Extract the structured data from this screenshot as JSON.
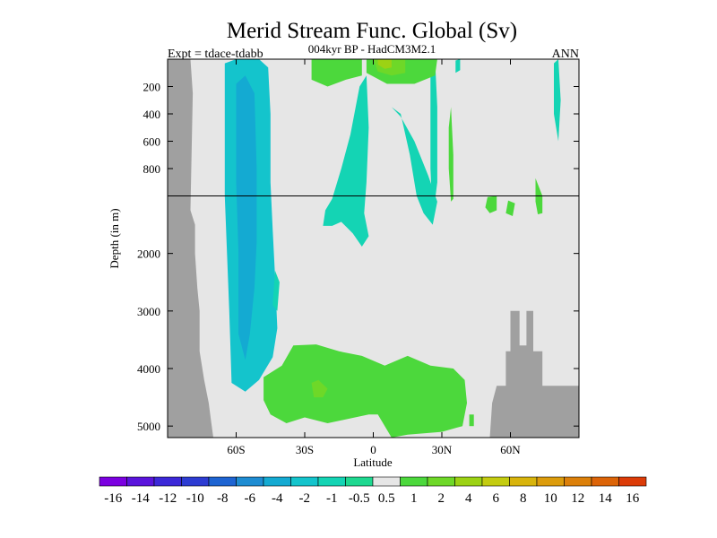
{
  "chart_data": {
    "type": "heatmap",
    "title": "Merid Stream Func. Global (Sv)",
    "subtitle_left": "Expt = tdace-tdabb",
    "subtitle_center": "004kyr BP - HadCM3M2.1",
    "subtitle_right": "ANN",
    "xlabel": "Latitude",
    "ylabel": "Depth (in m)",
    "xlim": [
      -90,
      90
    ],
    "x_ticks": [
      {
        "value": -60,
        "label": "60S"
      },
      {
        "value": -30,
        "label": "30S"
      },
      {
        "value": 0,
        "label": "0"
      },
      {
        "value": 30,
        "label": "30N"
      },
      {
        "value": 60,
        "label": "60N"
      }
    ],
    "y_ticks_upper": [
      {
        "value": 200,
        "label": "200"
      },
      {
        "value": 400,
        "label": "400"
      },
      {
        "value": 600,
        "label": "600"
      },
      {
        "value": 800,
        "label": "800"
      }
    ],
    "y_ticks_lower": [
      {
        "value": 2000,
        "label": "2000"
      },
      {
        "value": 3000,
        "label": "3000"
      },
      {
        "value": 4000,
        "label": "4000"
      },
      {
        "value": 5000,
        "label": "5000"
      }
    ],
    "y_upper_range": [
      0,
      1000
    ],
    "y_lower_range": [
      1000,
      5200
    ],
    "grid": false,
    "legend": "colorbar-bottom",
    "colorbar": {
      "colors": [
        "#7b00e0",
        "#5a14dc",
        "#3c28d8",
        "#2d3cd2",
        "#1e64d2",
        "#1e8cd2",
        "#14aad2",
        "#14c4cc",
        "#14d4b4",
        "#1ed890",
        "#e6e6e6",
        "#4cd83c",
        "#6ed828",
        "#9cd214",
        "#c4cc10",
        "#d8b40c",
        "#dc9c0c",
        "#dc800a",
        "#dc6408",
        "#dc3c08"
      ],
      "labels": [
        "-16",
        "-14",
        "-12",
        "-10",
        "-8",
        "-6",
        "-4",
        "-2",
        "-1",
        "-0.5",
        "0.5",
        "1",
        "2",
        "4",
        "6",
        "8",
        "10",
        "12",
        "14",
        "16"
      ]
    },
    "regions": [
      {
        "level": -4,
        "color": "#14c4cc",
        "pts": [
          [
            -65,
            30
          ],
          [
            -60,
            0
          ],
          [
            -50,
            0
          ],
          [
            -46,
            60
          ],
          [
            -45,
            400
          ],
          [
            -45,
            900
          ],
          [
            -44,
            1600
          ],
          [
            -43,
            2400
          ],
          [
            -42,
            3300
          ],
          [
            -44,
            3800
          ],
          [
            -50,
            4200
          ],
          [
            -56,
            4400
          ],
          [
            -62,
            4250
          ],
          [
            -63,
            3000
          ],
          [
            -64,
            2000
          ],
          [
            -65,
            1000
          ]
        ]
      },
      {
        "level": -6,
        "color": "#14aad2",
        "pts": [
          [
            -60,
            180
          ],
          [
            -56,
            120
          ],
          [
            -52,
            250
          ],
          [
            -51,
            800
          ],
          [
            -51,
            1800
          ],
          [
            -52,
            2600
          ],
          [
            -54,
            3400
          ],
          [
            -56,
            3850
          ],
          [
            -59,
            3400
          ],
          [
            -59,
            2000
          ],
          [
            -60,
            900
          ]
        ]
      },
      {
        "level": -2,
        "color": "#14d4b4",
        "pts": [
          [
            -6,
            200
          ],
          [
            -3,
            120
          ],
          [
            -2,
            500
          ],
          [
            -3,
            900
          ],
          [
            -4,
            1300
          ],
          [
            -2,
            1700
          ],
          [
            -5,
            1880
          ],
          [
            -9,
            1650
          ],
          [
            -14,
            1450
          ],
          [
            -18,
            1520
          ],
          [
            -22,
            1520
          ],
          [
            -21,
            1250
          ],
          [
            -18,
            1050
          ],
          [
            -14,
            800
          ],
          [
            -10,
            550
          ]
        ]
      },
      {
        "level": -2,
        "color": "#14d4b4",
        "pts": [
          [
            8,
            350
          ],
          [
            12,
            400
          ],
          [
            16,
            700
          ],
          [
            19,
            1000
          ],
          [
            22,
            1300
          ],
          [
            26,
            1500
          ],
          [
            28,
            1100
          ],
          [
            24,
            850
          ],
          [
            18,
            600
          ],
          [
            12,
            420
          ]
        ]
      },
      {
        "level": -2,
        "color": "#14d4b4",
        "pts": [
          [
            25,
            100
          ],
          [
            27,
            0
          ],
          [
            28,
            350
          ],
          [
            28,
            900
          ],
          [
            26,
            1400
          ],
          [
            25,
            800
          ]
        ]
      },
      {
        "level": -2,
        "color": "#14d4b4",
        "pts": [
          [
            36,
            10
          ],
          [
            38,
            0
          ],
          [
            38,
            80
          ],
          [
            36,
            100
          ]
        ]
      },
      {
        "level": -2,
        "color": "#14d4b4",
        "pts": [
          [
            79,
            30
          ],
          [
            81,
            0
          ],
          [
            82,
            300
          ],
          [
            81,
            600
          ],
          [
            79,
            400
          ]
        ]
      },
      {
        "level": -2,
        "color": "#14d4b4",
        "pts": [
          [
            -43,
            2300
          ],
          [
            -41,
            2500
          ],
          [
            -42,
            3000
          ],
          [
            -44,
            2900
          ]
        ]
      },
      {
        "level": 1,
        "color": "#4cd83c",
        "pts": [
          [
            -27,
            0
          ],
          [
            -5,
            0
          ],
          [
            -5,
            120
          ],
          [
            -12,
            150
          ],
          [
            -20,
            200
          ],
          [
            -27,
            150
          ]
        ]
      },
      {
        "level": 1,
        "color": "#4cd83c",
        "pts": [
          [
            -3,
            0
          ],
          [
            28,
            0
          ],
          [
            27,
            120
          ],
          [
            18,
            180
          ],
          [
            6,
            180
          ],
          [
            -3,
            100
          ]
        ]
      },
      {
        "level": 2,
        "color": "#6ed828",
        "pts": [
          [
            0,
            0
          ],
          [
            14,
            0
          ],
          [
            14,
            100
          ],
          [
            8,
            120
          ],
          [
            2,
            90
          ]
        ]
      },
      {
        "level": 4,
        "color": "#9cd214",
        "pts": [
          [
            2,
            0
          ],
          [
            8,
            0
          ],
          [
            8,
            60
          ],
          [
            5,
            70
          ],
          [
            2,
            40
          ]
        ]
      },
      {
        "level": 1,
        "color": "#4cd83c",
        "pts": [
          [
            33,
            500
          ],
          [
            34,
            350
          ],
          [
            35,
            700
          ],
          [
            35,
            1050
          ],
          [
            34,
            1100
          ],
          [
            33,
            800
          ]
        ]
      },
      {
        "level": 1,
        "color": "#4cd83c",
        "pts": [
          [
            50,
            1020
          ],
          [
            54,
            1000
          ],
          [
            54,
            1250
          ],
          [
            51,
            1300
          ],
          [
            49,
            1200
          ]
        ]
      },
      {
        "level": 1,
        "color": "#4cd83c",
        "pts": [
          [
            59,
            1080
          ],
          [
            62,
            1130
          ],
          [
            61,
            1350
          ],
          [
            58,
            1300
          ]
        ]
      },
      {
        "level": 1,
        "color": "#4cd83c",
        "pts": [
          [
            71,
            870
          ],
          [
            74,
            1000
          ],
          [
            74,
            1300
          ],
          [
            72,
            1320
          ],
          [
            71,
            1100
          ]
        ]
      },
      {
        "level": 1,
        "color": "#4cd83c",
        "pts": [
          [
            -48,
            4550
          ],
          [
            -48,
            4150
          ],
          [
            -40,
            3950
          ],
          [
            -35,
            3600
          ],
          [
            -25,
            3580
          ],
          [
            -15,
            3700
          ],
          [
            -5,
            3780
          ],
          [
            5,
            3950
          ],
          [
            15,
            3780
          ],
          [
            25,
            3950
          ],
          [
            35,
            4000
          ],
          [
            40,
            4200
          ],
          [
            41,
            4600
          ],
          [
            39,
            5000
          ],
          [
            30,
            5100
          ],
          [
            15,
            5150
          ],
          [
            8,
            5200
          ],
          [
            2,
            4800
          ],
          [
            -2,
            4800
          ],
          [
            -8,
            4850
          ],
          [
            -20,
            4950
          ],
          [
            -30,
            4850
          ],
          [
            -38,
            4950
          ],
          [
            -45,
            4800
          ]
        ]
      },
      {
        "level": 2,
        "color": "#6ed828",
        "pts": [
          [
            -27,
            4250
          ],
          [
            -24,
            4200
          ],
          [
            -20,
            4350
          ],
          [
            -22,
            4500
          ],
          [
            -26,
            4500
          ]
        ]
      },
      {
        "level": 1,
        "color": "#4cd83c",
        "pts": [
          [
            42,
            4800
          ],
          [
            44,
            4800
          ],
          [
            44,
            5000
          ],
          [
            42,
            5000
          ]
        ]
      }
    ],
    "land_mask": [
      {
        "pts": [
          [
            -90,
            0
          ],
          [
            -80,
            0
          ],
          [
            -79,
            250
          ],
          [
            -80,
            1250
          ],
          [
            -78,
            1500
          ],
          [
            -78,
            2000
          ],
          [
            -77,
            2600
          ],
          [
            -76,
            3000
          ],
          [
            -76,
            3700
          ],
          [
            -74,
            4200
          ],
          [
            -72,
            4600
          ],
          [
            -71,
            4900
          ],
          [
            -70,
            5200
          ],
          [
            -90,
            5200
          ]
        ]
      },
      {
        "pts": [
          [
            51,
            5200
          ],
          [
            52,
            4600
          ],
          [
            54,
            4300
          ],
          [
            58,
            4300
          ],
          [
            58,
            3700
          ],
          [
            60,
            3700
          ],
          [
            60,
            3000
          ],
          [
            64,
            3000
          ],
          [
            64,
            3600
          ],
          [
            67,
            3600
          ],
          [
            67,
            3000
          ],
          [
            70,
            3000
          ],
          [
            70,
            3700
          ],
          [
            74,
            3700
          ],
          [
            74,
            4300
          ],
          [
            90,
            4300
          ],
          [
            90,
            5200
          ]
        ]
      }
    ]
  }
}
